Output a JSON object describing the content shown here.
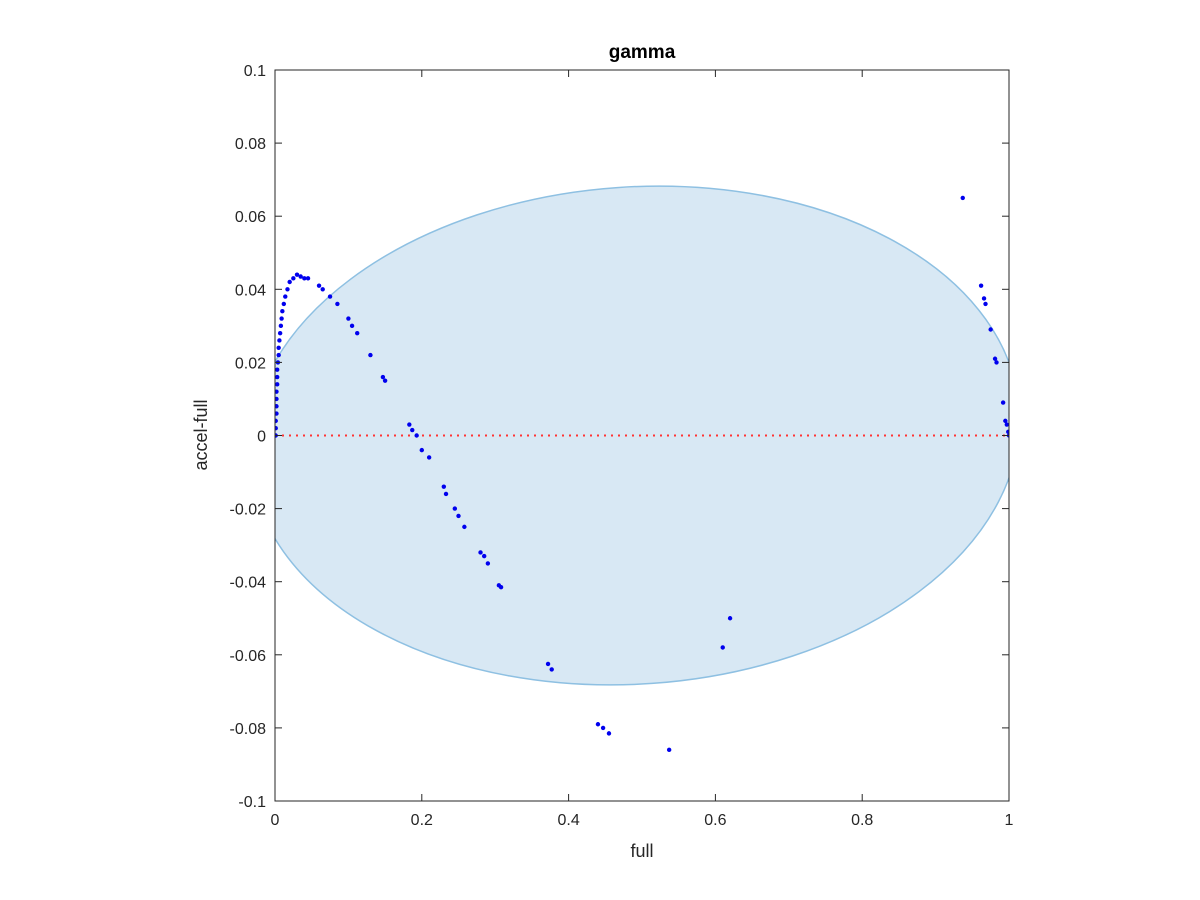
{
  "chart_data": {
    "type": "scatter",
    "title": "gamma",
    "xlabel": "full",
    "ylabel": "accel-full",
    "xlim": [
      0,
      1
    ],
    "ylim": [
      -0.1,
      0.1
    ],
    "xticks": [
      0,
      0.2,
      0.4,
      0.6,
      0.8,
      1
    ],
    "xtick_labels": [
      "0",
      "0.2",
      "0.4",
      "0.6",
      "0.8",
      "1"
    ],
    "yticks": [
      -0.1,
      -0.08,
      -0.06,
      -0.04,
      -0.02,
      0,
      0.02,
      0.04,
      0.06,
      0.08,
      0.1
    ],
    "ytick_labels": [
      "-0.1",
      "-0.08",
      "-0.06",
      "-0.04",
      "-0.02",
      "0",
      "0.02",
      "0.04",
      "0.06",
      "0.08",
      "0.1"
    ],
    "grid": false,
    "colors": {
      "points": "#0000ee",
      "ellipse_fill": "#d8e8f4",
      "ellipse_stroke": "#8ec0e2",
      "zero_line": "#ff3333",
      "axes": "#262626"
    },
    "ellipse": {
      "center_x": 0.49,
      "center_y": 0,
      "semi_major_x": 0.525,
      "semi_minor_y": 0.068,
      "tilt": -0.4,
      "clipped_to_axes": true
    },
    "reference_line": {
      "y": 0,
      "style": "dotted"
    },
    "series": [
      {
        "points": [
          [
            0.001,
            0.0
          ],
          [
            0.001,
            0.002
          ],
          [
            0.001,
            0.004
          ],
          [
            0.002,
            0.006
          ],
          [
            0.002,
            0.008
          ],
          [
            0.002,
            0.01
          ],
          [
            0.002,
            0.012
          ],
          [
            0.003,
            0.014
          ],
          [
            0.003,
            0.016
          ],
          [
            0.003,
            0.018
          ],
          [
            0.004,
            0.02
          ],
          [
            0.005,
            0.022
          ],
          [
            0.005,
            0.024
          ],
          [
            0.006,
            0.026
          ],
          [
            0.007,
            0.028
          ],
          [
            0.008,
            0.03
          ],
          [
            0.009,
            0.032
          ],
          [
            0.01,
            0.034
          ],
          [
            0.012,
            0.036
          ],
          [
            0.014,
            0.038
          ],
          [
            0.017,
            0.04
          ],
          [
            0.02,
            0.042
          ],
          [
            0.025,
            0.043
          ],
          [
            0.03,
            0.044
          ],
          [
            0.035,
            0.0435
          ],
          [
            0.04,
            0.043
          ],
          [
            0.045,
            0.043
          ],
          [
            0.06,
            0.041
          ],
          [
            0.065,
            0.04
          ],
          [
            0.075,
            0.038
          ],
          [
            0.085,
            0.036
          ],
          [
            0.1,
            0.032
          ],
          [
            0.105,
            0.03
          ],
          [
            0.112,
            0.028
          ],
          [
            0.13,
            0.022
          ],
          [
            0.147,
            0.016
          ],
          [
            0.15,
            0.015
          ],
          [
            0.183,
            0.003
          ],
          [
            0.187,
            0.0015
          ],
          [
            0.193,
            0.0
          ],
          [
            0.2,
            -0.004
          ],
          [
            0.21,
            -0.006
          ],
          [
            0.23,
            -0.014
          ],
          [
            0.233,
            -0.016
          ],
          [
            0.245,
            -0.02
          ],
          [
            0.25,
            -0.022
          ],
          [
            0.258,
            -0.025
          ],
          [
            0.28,
            -0.032
          ],
          [
            0.285,
            -0.033
          ],
          [
            0.29,
            -0.035
          ],
          [
            0.305,
            -0.041
          ],
          [
            0.308,
            -0.0415
          ],
          [
            0.372,
            -0.0625
          ],
          [
            0.377,
            -0.064
          ],
          [
            0.44,
            -0.079
          ],
          [
            0.447,
            -0.08
          ],
          [
            0.455,
            -0.0815
          ],
          [
            0.537,
            -0.086
          ],
          [
            0.61,
            -0.058
          ],
          [
            0.62,
            -0.05
          ],
          [
            0.937,
            0.065
          ],
          [
            0.962,
            0.041
          ],
          [
            0.966,
            0.0375
          ],
          [
            0.968,
            0.036
          ],
          [
            0.975,
            0.029
          ],
          [
            0.981,
            0.021
          ],
          [
            0.983,
            0.02
          ],
          [
            0.992,
            0.009
          ],
          [
            0.995,
            0.004
          ],
          [
            0.997,
            0.003
          ],
          [
            0.999,
            0.001
          ],
          [
            1.0,
            0.0
          ]
        ]
      }
    ]
  }
}
